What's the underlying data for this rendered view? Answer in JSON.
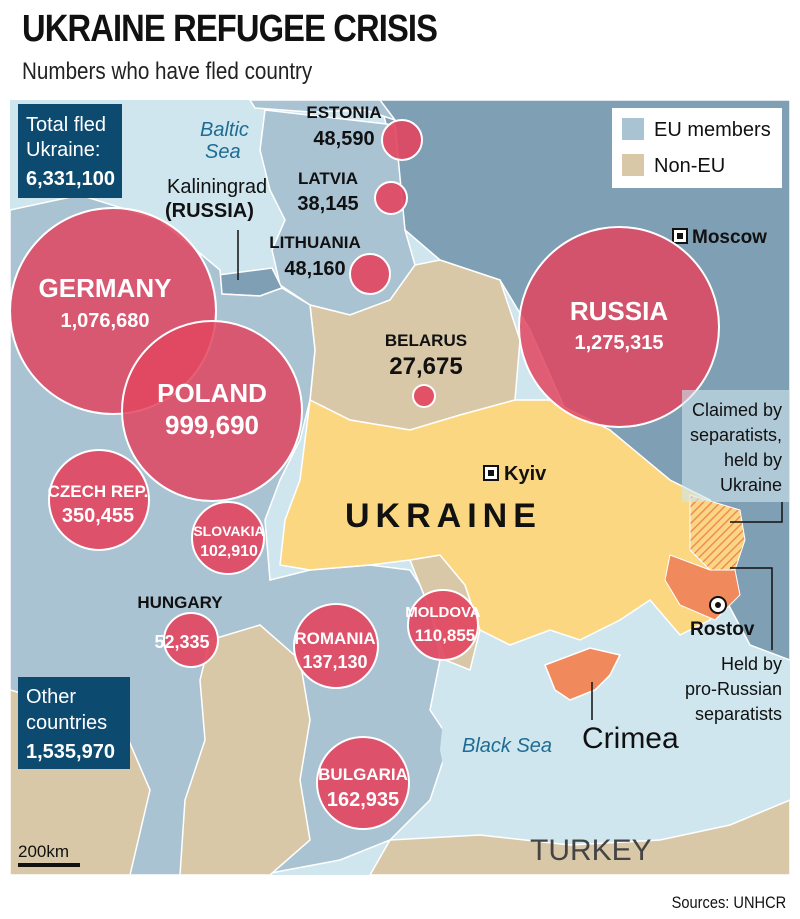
{
  "title": "UKRAINE REFUGEE CRISIS",
  "subtitle": "Numbers who have fled country",
  "total_box": {
    "line1": "Total fled",
    "line2": "Ukraine:",
    "value": "6,331,100"
  },
  "other_box": {
    "line1": "Other",
    "line2": "countries",
    "value": "1,535,970"
  },
  "legend": {
    "eu": "EU members",
    "non_eu": "Non-EU",
    "eu_color": "#a9c3d3",
    "non_eu_color": "#d8c8a8"
  },
  "colors": {
    "sea": "#cfe6ee",
    "eu": "#a9c3d3",
    "non_eu": "#d8c8a8",
    "russia": "#7f9fb5",
    "ukraine": "#fbd781",
    "separatist": "#f08a5d",
    "bubble": "#e2455f",
    "dark_box": "#0d4a70"
  },
  "countries": [
    {
      "id": "germany",
      "name": "GERMANY",
      "value": "1,076,680"
    },
    {
      "id": "poland",
      "name": "POLAND",
      "value": "999,690"
    },
    {
      "id": "russia",
      "name": "RUSSIA",
      "value": "1,275,315"
    },
    {
      "id": "czech",
      "name": "CZECH REP.",
      "value": "350,455"
    },
    {
      "id": "slovakia",
      "name": "SLOVAKIA",
      "value": "102,910"
    },
    {
      "id": "hungary",
      "name": "HUNGARY",
      "value": "52,335"
    },
    {
      "id": "romania",
      "name": "ROMANIA",
      "value": "137,130"
    },
    {
      "id": "moldova",
      "name": "MOLDOVA",
      "value": "110,855"
    },
    {
      "id": "bulgaria",
      "name": "BULGARIA",
      "value": "162,935"
    },
    {
      "id": "estonia",
      "name": "ESTONIA",
      "value": "48,590"
    },
    {
      "id": "latvia",
      "name": "LATVIA",
      "value": "38,145"
    },
    {
      "id": "lithuania",
      "name": "LITHUANIA",
      "value": "48,160"
    },
    {
      "id": "belarus",
      "name": "BELARUS",
      "value": "27,675"
    }
  ],
  "labels": {
    "ukraine": "UKRAINE",
    "kyiv": "Kyiv",
    "moscow": "Moscow",
    "rostov": "Rostov",
    "crimea": "Crimea",
    "turkey": "TURKEY",
    "baltic_sea_1": "Baltic",
    "baltic_sea_2": "Sea",
    "black_sea": "Black Sea",
    "kaliningrad_1": "Kaliningrad",
    "kaliningrad_2": "(RUSSIA)"
  },
  "annotations": {
    "claimed": [
      "Claimed by",
      "separatists,",
      "held by",
      "Ukraine"
    ],
    "held": [
      "Held by",
      "pro-Russian",
      "separatists"
    ]
  },
  "scale_label": "200km",
  "sources": "Sources: UNHCR"
}
